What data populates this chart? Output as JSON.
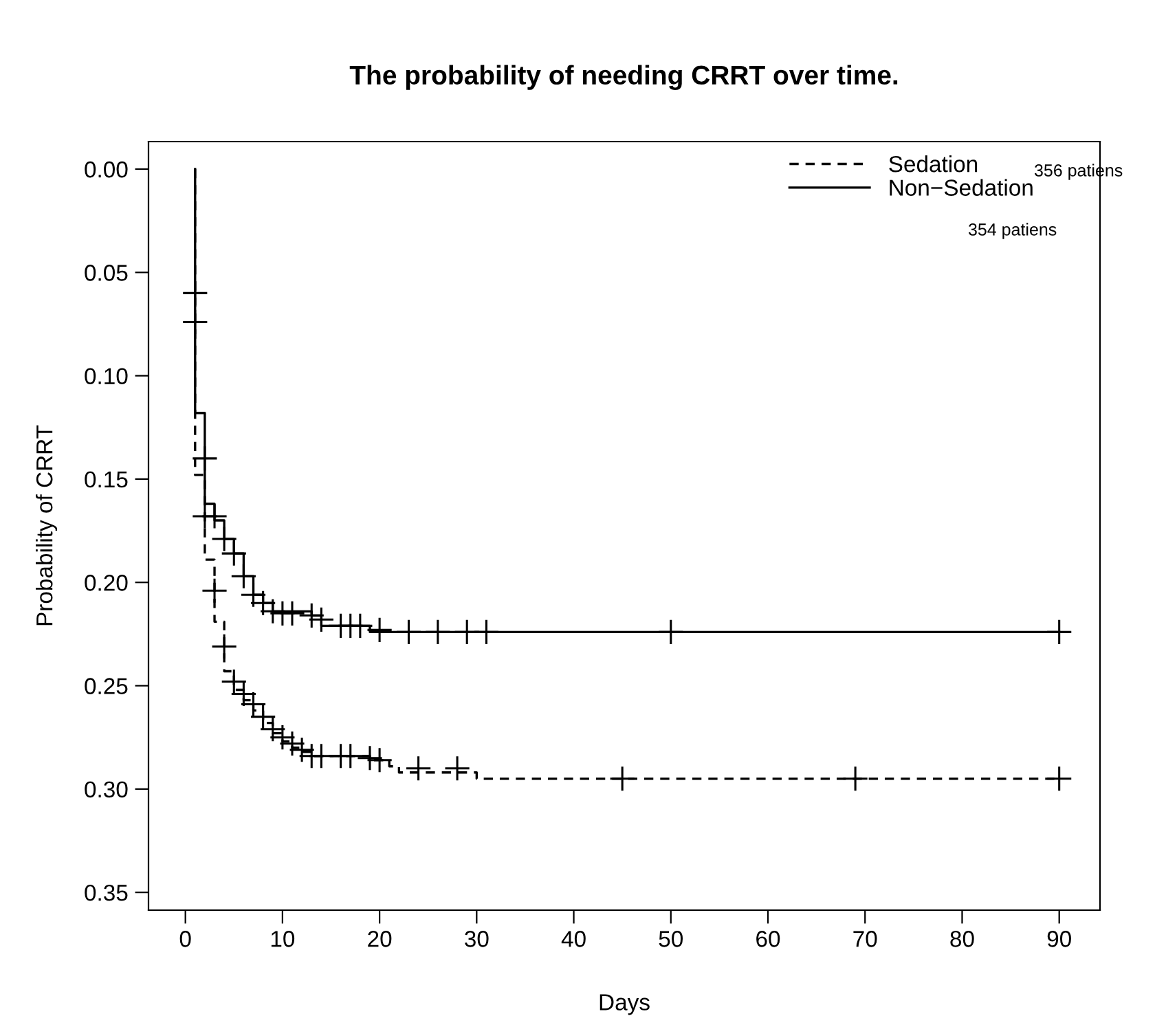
{
  "chart_data": {
    "type": "step",
    "title": "The probability of needing CRRT over time.",
    "xlabel": "Days",
    "ylabel": "Probability of CRRT",
    "series": [
      {
        "name": "Sedation",
        "color": "#000000",
        "line_style": "dashed",
        "marker": "none",
        "x": [
          1,
          1,
          2,
          3,
          4,
          5,
          6,
          7,
          8,
          9,
          10,
          11,
          12,
          13,
          14,
          19,
          21,
          22,
          30,
          90
        ],
        "values": [
          0,
          0.148,
          0.189,
          0.219,
          0.243,
          0.252,
          0.257,
          0.262,
          0.268,
          0.273,
          0.277,
          0.28,
          0.282,
          0.284,
          0.284,
          0.286,
          0.289,
          0.292,
          0.295,
          0.295
        ]
      },
      {
        "name": "Non−Sedation",
        "color": "#000000",
        "line_style": "solid",
        "marker": "none",
        "x": [
          1,
          1,
          2,
          3,
          4,
          5,
          6,
          7,
          8,
          9,
          13,
          14,
          19,
          90
        ],
        "values": [
          0,
          0.118,
          0.162,
          0.17,
          0.179,
          0.186,
          0.197,
          0.206,
          0.21,
          0.214,
          0.216,
          0.221,
          0.224,
          0.224
        ]
      },
      {
        "type": "scatter",
        "color": "#000000",
        "marker": "cross",
        "x": [
          3,
          4,
          5,
          6,
          7,
          8,
          9,
          10,
          11,
          12,
          13,
          14,
          16,
          17,
          19,
          20,
          24,
          28,
          45,
          69,
          90
        ],
        "values": [
          0.204,
          0.231,
          0.248,
          0.254,
          0.259,
          0.265,
          0.271,
          0.275,
          0.278,
          0.281,
          0.284,
          0.284,
          0.284,
          0.284,
          0.285,
          0.286,
          0.29,
          0.29,
          0.295,
          0.295,
          0.295
        ]
      },
      {
        "type": "scatter",
        "color": "#000000",
        "marker": "cross",
        "x": [
          1,
          1,
          2,
          2,
          3,
          4,
          5,
          6,
          7,
          8,
          9,
          10,
          11,
          13,
          14,
          16,
          17,
          18,
          20,
          23,
          26,
          29,
          31,
          50,
          90
        ],
        "values": [
          0.06,
          0.074,
          0.14,
          0.168,
          0.168,
          0.179,
          0.186,
          0.197,
          0.206,
          0.21,
          0.214,
          0.215,
          0.215,
          0.216,
          0.218,
          0.221,
          0.221,
          0.221,
          0.223,
          0.224,
          0.224,
          0.224,
          0.224,
          0.224,
          0.224
        ]
      }
    ],
    "annotations": [
      "356 patiens",
      "354 patiens"
    ],
    "xlim": [
      -3.8,
      94.2
    ],
    "ylim": [
      0.3586,
      -0.0133
    ],
    "xticks": [
      0,
      10,
      20,
      30,
      40,
      50,
      60,
      70,
      80,
      90
    ],
    "yticks": [
      {
        "value": 0,
        "label": "0.00"
      },
      {
        "value": 0.05,
        "label": "0.05"
      },
      {
        "value": 0.1,
        "label": "0.10"
      },
      {
        "value": 0.15,
        "label": "0.15"
      },
      {
        "value": 0.2,
        "label": "0.20"
      },
      {
        "value": 0.25,
        "label": "0.25"
      },
      {
        "value": 0.3,
        "label": "0.30"
      },
      {
        "value": 0.35,
        "label": "0.35"
      }
    ],
    "legend": "top right",
    "grid": false
  }
}
